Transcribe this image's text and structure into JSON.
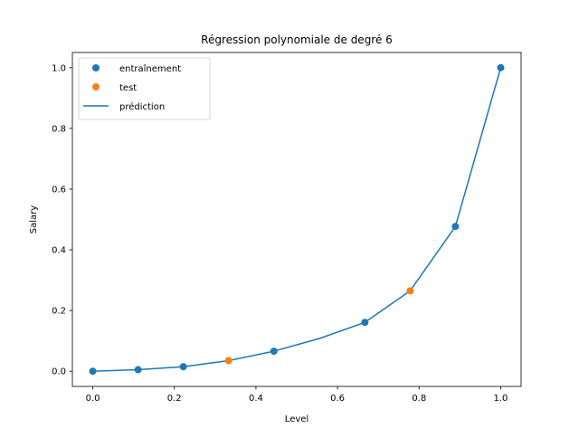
{
  "chart_data": {
    "type": "scatter",
    "title": "Régression polynomiale de degré 6",
    "xlabel": "Level",
    "ylabel": "Salary",
    "xlim": [
      -0.05,
      1.05
    ],
    "ylim": [
      -0.05,
      1.05
    ],
    "xticks": [
      0.0,
      0.2,
      0.4,
      0.6,
      0.8,
      1.0
    ],
    "xtick_labels": [
      "0.0",
      "0.2",
      "0.4",
      "0.6",
      "0.8",
      "1.0"
    ],
    "yticks": [
      0.0,
      0.2,
      0.4,
      0.6,
      0.8,
      1.0
    ],
    "ytick_labels": [
      "0.0",
      "0.2",
      "0.4",
      "0.6",
      "0.8",
      "1.0"
    ],
    "grid": false,
    "legend_position": "top-left",
    "series": [
      {
        "name": "entraînement",
        "kind": "scatter",
        "color": "#1f77b4",
        "x": [
          0.0,
          0.111,
          0.222,
          0.444,
          0.667,
          0.889,
          1.0
        ],
        "y": [
          0.0,
          0.005,
          0.015,
          0.066,
          0.161,
          0.477,
          1.0
        ]
      },
      {
        "name": "test",
        "kind": "scatter",
        "color": "#ff7f0e",
        "x": [
          0.333,
          0.778
        ],
        "y": [
          0.035,
          0.265
        ]
      },
      {
        "name": "prédiction",
        "kind": "line",
        "color": "#1f77b4",
        "x": [
          0.0,
          0.111,
          0.222,
          0.333,
          0.444,
          0.556,
          0.667,
          0.778,
          0.889,
          1.0
        ],
        "y": [
          0.0,
          0.005,
          0.015,
          0.035,
          0.066,
          0.108,
          0.161,
          0.265,
          0.477,
          1.0
        ]
      }
    ]
  }
}
